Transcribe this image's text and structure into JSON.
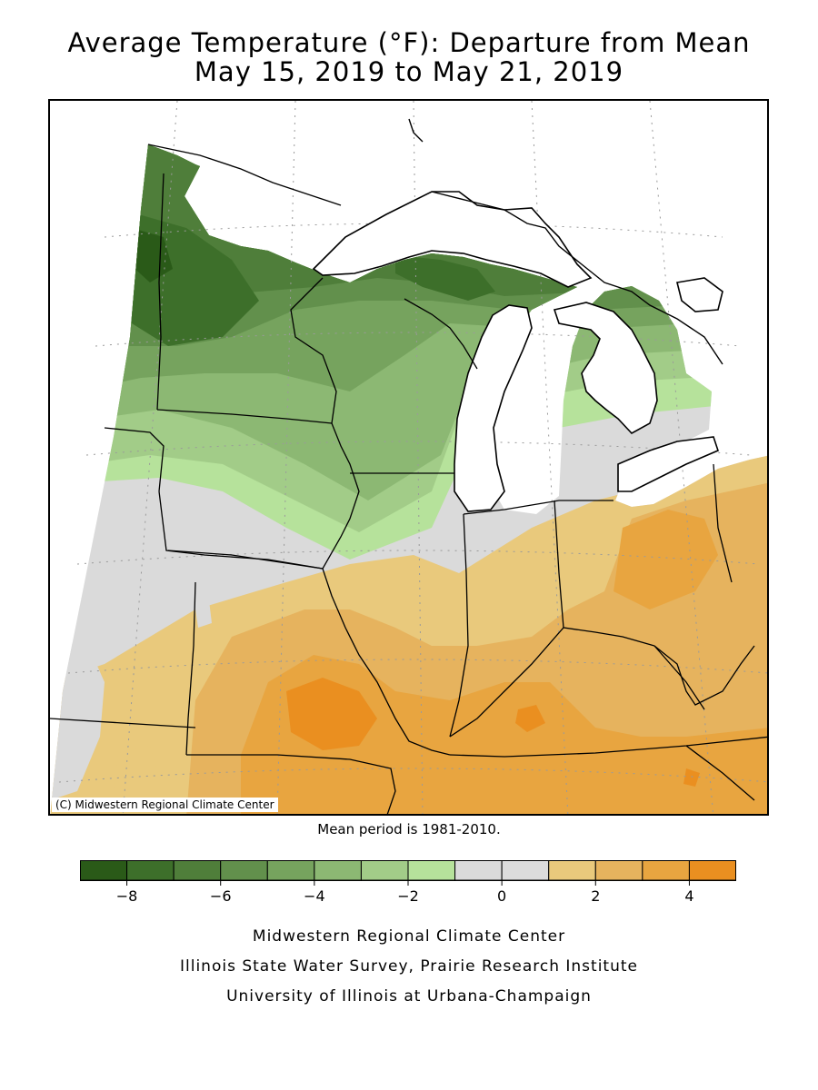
{
  "title_line1": "Average Temperature (°F): Departure from Mean",
  "title_line2": "May 15, 2019 to May 21, 2019",
  "copyright": "(C) Midwestern Regional Climate Center",
  "mean_period": "Mean period is 1981-2010.",
  "legend": {
    "colors": [
      "#2a5a18",
      "#3d6f2a",
      "#4f7e3a",
      "#62904c",
      "#76a35e",
      "#8cb873",
      "#a2cc88",
      "#b6e29b",
      "#dadada",
      "#dcdcdc",
      "#e9c97c",
      "#e6b35e",
      "#e8a540",
      "#ea8f20"
    ],
    "bounds": [
      -9,
      -8,
      -7,
      -6,
      -5,
      -4,
      -3,
      -2,
      -1,
      0,
      1,
      2,
      3,
      4,
      5
    ],
    "tick_labels": [
      "−8",
      "−6",
      "−4",
      "−2",
      "0",
      "2",
      "4"
    ],
    "tick_values": [
      -8,
      -6,
      -4,
      -2,
      0,
      2,
      4
    ]
  },
  "credits": {
    "line1": "Midwestern Regional Climate Center",
    "line2": "Illinois State Water Survey, Prairie Research Institute",
    "line3": "University of Illinois at Urbana-Champaign"
  }
}
